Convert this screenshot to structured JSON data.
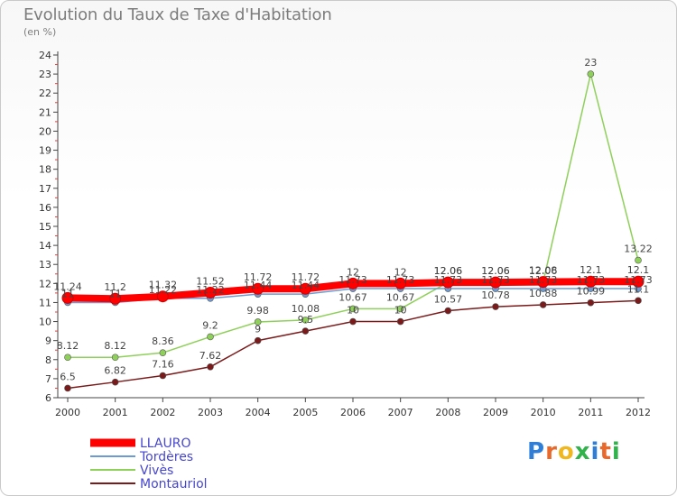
{
  "chart_data": {
    "type": "line",
    "title": "Evolution du Taux de Taxe d'Habitation",
    "subtitle": "(en %)",
    "x": [
      "2000",
      "2001",
      "2002",
      "2003",
      "2004",
      "2005",
      "2006",
      "2007",
      "2008",
      "2009",
      "2010",
      "2011",
      "2012"
    ],
    "ylim": [
      6,
      24
    ],
    "yticks": [
      6,
      7,
      8,
      9,
      10,
      11,
      12,
      13,
      14,
      15,
      16,
      17,
      18,
      19,
      20,
      21,
      22,
      23,
      24
    ],
    "grid": false,
    "legend_position": "bottom-left",
    "series": [
      {
        "name": "LLAURO",
        "color": "#ff0000",
        "values": [
          11.24,
          11.2,
          11.32,
          11.52,
          11.72,
          11.72,
          12,
          12,
          12.06,
          12.06,
          12.08,
          12.1,
          12.1
        ],
        "labels": [
          "11.24",
          "11.2",
          "11.32",
          "11.52",
          "11.72",
          "11.72",
          "12",
          "12",
          "12.06",
          "12.06",
          "12.08",
          "12.1",
          "12.1"
        ]
      },
      {
        "name": "Tordères",
        "color": "#6b9bd2",
        "values": [
          11,
          11,
          11.22,
          11.22,
          11.44,
          11.44,
          11.73,
          11.73,
          11.73,
          11.73,
          11.73,
          11.73,
          11.73
        ],
        "labels": [
          "11",
          "11",
          "11.22",
          "11.22",
          "11.44",
          "11.44",
          "11.73",
          "11.73",
          "11.73",
          "11.73",
          "11.73",
          "11.73",
          "11.73"
        ]
      },
      {
        "name": "Vivès",
        "color": "#8fd05a",
        "values": [
          8.12,
          8.12,
          8.36,
          9.2,
          9.98,
          10.08,
          10.67,
          10.67,
          12.06,
          12.06,
          12.06,
          23,
          13.22
        ],
        "labels": [
          "8.12",
          "8.12",
          "8.36",
          "9.2",
          "9.98",
          "10.08",
          "10.67",
          "10.67",
          "12.06",
          "12.06",
          "12.06",
          "23",
          "13.22"
        ]
      },
      {
        "name": "Montauriol",
        "color": "#7b1a1a",
        "values": [
          6.5,
          6.82,
          7.16,
          7.62,
          9,
          9.5,
          10,
          10,
          10.57,
          10.78,
          10.88,
          10.99,
          11.1
        ],
        "labels": [
          "6.5",
          "6.82",
          "7.16",
          "7.62",
          "9",
          "9.5",
          "10",
          "10",
          "10.57",
          "10.78",
          "10.88",
          "10.99",
          "11.1"
        ]
      }
    ]
  },
  "brand": {
    "letters": [
      "P",
      "r",
      "o",
      "x",
      "i",
      "t",
      "i"
    ],
    "colors": [
      "#2f7fd8",
      "#e8692a",
      "#f0b820",
      "#2fb34a",
      "#2f7fd8",
      "#e8692a",
      "#2fb34a"
    ]
  }
}
